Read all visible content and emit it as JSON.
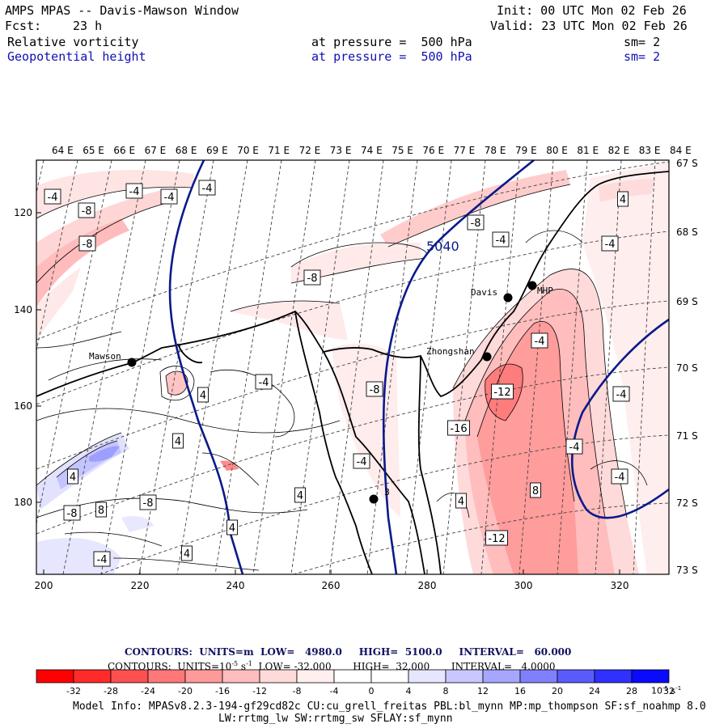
{
  "header": {
    "title": "AMPS MPAS -- Davis-Mawson Window",
    "init": "Init: 00 UTC Mon 02 Feb 26",
    "fcst_label": "Fcst:",
    "fcst_value": "23 h",
    "valid": "Valid: 23 UTC Mon 02 Feb 26",
    "field1_name": "Relative vorticity",
    "field1_level": "at pressure =  500 hPa",
    "field1_sm": "sm= 2",
    "field2_name": "Geopotential height",
    "field2_level": "at pressure =  500 hPa",
    "field2_sm": "sm= 2"
  },
  "map": {
    "lon_labels": [
      "64 E",
      "65 E",
      "66 E",
      "67 E",
      "68 E",
      "69 E",
      "70 E",
      "71 E",
      "72 E",
      "73 E",
      "74 E",
      "75 E",
      "76 E",
      "77 E",
      "78 E",
      "79 E",
      "80 E",
      "81 E",
      "82 E",
      "83 E",
      "84 E"
    ],
    "lat_labels": [
      "67 S",
      "68 S",
      "69 S",
      "70 S",
      "71 S",
      "72 S",
      "73 S"
    ],
    "x_ticks": [
      "200",
      "220",
      "240",
      "260",
      "280",
      "300",
      "320"
    ],
    "y_ticks": [
      "120",
      "140",
      "160",
      "180"
    ],
    "stations": [
      {
        "name": "Mawson"
      },
      {
        "name": "Davis"
      },
      {
        "name": "MHP"
      },
      {
        "name": "Zhongshan"
      }
    ],
    "height_contour_label": "5040",
    "vorticity_labels": [
      "-4",
      "-4",
      "-8",
      "-4",
      "-4",
      "-8",
      "-8",
      "-4",
      "-4",
      "4",
      "-8",
      "-4",
      "-12",
      "-16",
      "-8",
      "-4",
      "4",
      "4",
      "4",
      "4",
      "4",
      "4",
      "8",
      "-4",
      "4",
      "8",
      "-12",
      "-8",
      "-8",
      "-4",
      "-4",
      "-4",
      "-4"
    ],
    "station_extra_label": "3"
  },
  "footer": {
    "contours1": "CONTOURS:  UNITS=m  LOW=   4980.0     HIGH=  5100.0     INTERVAL=   60.000",
    "contours2": "CONTOURS:  UNITS=10",
    "contours2_exp": "-5",
    "contours2_rest": " s",
    "contours2_exp2": "-1",
    "contours2_tail": "  LOW= -32.000       HIGH=  32.000       INTERVAL=   4.0000",
    "colorbar_labels": [
      "-32",
      "-28",
      "-24",
      "-20",
      "-16",
      "-12",
      "-8",
      "-4",
      "0",
      "4",
      "8",
      "12",
      "16",
      "20",
      "24",
      "28",
      "32"
    ],
    "colorbar_unit": "10",
    "colorbar_unit_exp": "-5",
    "colorbar_unit_s": "s",
    "colorbar_unit_exp2": "-1",
    "colorbar_colors": [
      "#ff0000",
      "#ff2a2a",
      "#ff5050",
      "#ff7878",
      "#ff9a9a",
      "#ffbdbd",
      "#ffdada",
      "#ffefef",
      "#ffffff",
      "#ffffff",
      "#e6e6ff",
      "#c8c8ff",
      "#a6a6ff",
      "#8080ff",
      "#5a5aff",
      "#3030ff",
      "#0a0aff"
    ],
    "model_info1": "Model Info: MPASv8.2.3-194-gf29cd82c CU:cu_grell_freitas PBL:bl_mynn MP:mp_thompson SF:sf_noahmp 8.0",
    "model_info2": "LW:rrtmg_lw SW:rrtmg_sw SFLAY:sf_mynn"
  }
}
